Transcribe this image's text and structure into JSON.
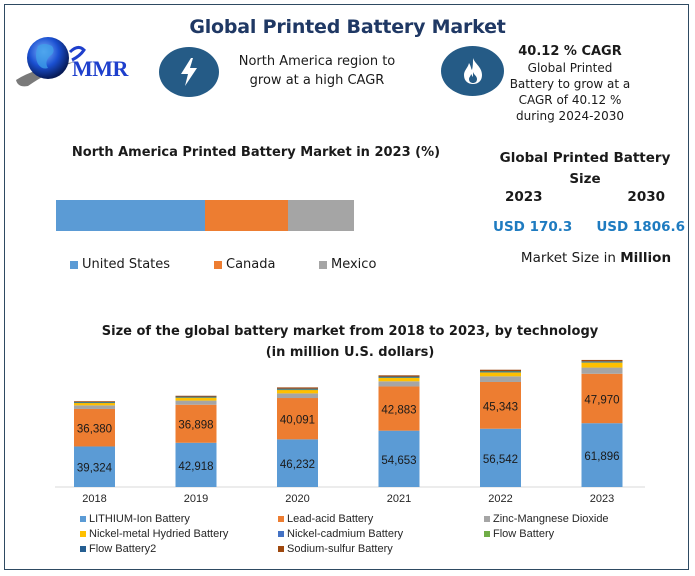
{
  "header": {
    "title": "Global Printed Battery Market",
    "logo_text": "MMR",
    "north_america_text": "North America region to grow at a high CAGR",
    "cagr_headline": "40.12 % CAGR",
    "cagr_description": "Global Printed Battery to grow at a CAGR of 40.12 % during 2024-2030",
    "icons": {
      "left": "lightning-bolt-icon",
      "right": "flame-icon"
    }
  },
  "market_size": {
    "title": "Global Printed Battery Size",
    "year_start": "2023",
    "year_end": "2030",
    "value_start": "USD 170.3",
    "value_end": "USD 1806.6",
    "unit_prefix": "Market Size in ",
    "unit_bold": "Million",
    "value_color": "#1e7bc0"
  },
  "chart_data": [
    {
      "type": "bar",
      "orientation": "horizontal-stacked-100",
      "title": "North America Printed Battery Market in 2023 (%)",
      "categories": [
        "United States",
        "Canada",
        "Mexico"
      ],
      "values": [
        50,
        28,
        22
      ],
      "colors": [
        "#5b9bd5",
        "#ed7d31",
        "#a5a5a5"
      ],
      "legend": "bottom"
    },
    {
      "type": "bar",
      "orientation": "vertical-stacked",
      "title": "Size of the global battery market from 2018 to 2023, by technology (in million U.S. dollars)",
      "categories": [
        "2018",
        "2019",
        "2020",
        "2021",
        "2022",
        "2023"
      ],
      "series": [
        {
          "name": "LITHIUM-Ion Battery",
          "color": "#5b9bd5",
          "values": [
            39324,
            42918,
            46232,
            54653,
            56542,
            61896
          ],
          "labeled": true
        },
        {
          "name": "Lead-acid Battery",
          "color": "#ed7d31",
          "values": [
            36380,
            36898,
            40091,
            42883,
            45343,
            47970
          ],
          "labeled": true
        },
        {
          "name": "Zinc-Mangnese Dioxide",
          "color": "#a5a5a5",
          "values": [
            3500,
            4000,
            4500,
            5000,
            5500,
            6000
          ],
          "labeled": false
        },
        {
          "name": "Nickel-metal Hydried Battery",
          "color": "#ffc000",
          "values": [
            2500,
            3000,
            3500,
            3500,
            4000,
            5000
          ],
          "labeled": false
        },
        {
          "name": "Nickel-cadmium Battery",
          "color": "#4472c4",
          "values": [
            300,
            300,
            300,
            300,
            300,
            300
          ],
          "labeled": false
        },
        {
          "name": "Flow Battery",
          "color": "#70ad47",
          "values": [
            300,
            300,
            400,
            400,
            400,
            400
          ],
          "labeled": false
        },
        {
          "name": "Flow Battery2",
          "color": "#255e91",
          "values": [
            300,
            300,
            400,
            400,
            400,
            400
          ],
          "labeled": false
        },
        {
          "name": "Sodium-sulfur Battery",
          "color": "#9e480e",
          "values": [
            700,
            800,
            1200,
            1200,
            1300,
            1300
          ],
          "labeled": false
        }
      ],
      "data_labels": [
        [
          "39,324",
          "42,918",
          "46,232",
          "54,653",
          "56,542",
          "61,896"
        ],
        [
          "36,380",
          "36,898",
          "40,091",
          "42,883",
          "45,343",
          "47,970"
        ]
      ],
      "ylim": [
        0,
        130000
      ],
      "y_axis_visible": false,
      "grid": false,
      "legend": "bottom",
      "xlabel": "",
      "ylabel": ""
    }
  ]
}
